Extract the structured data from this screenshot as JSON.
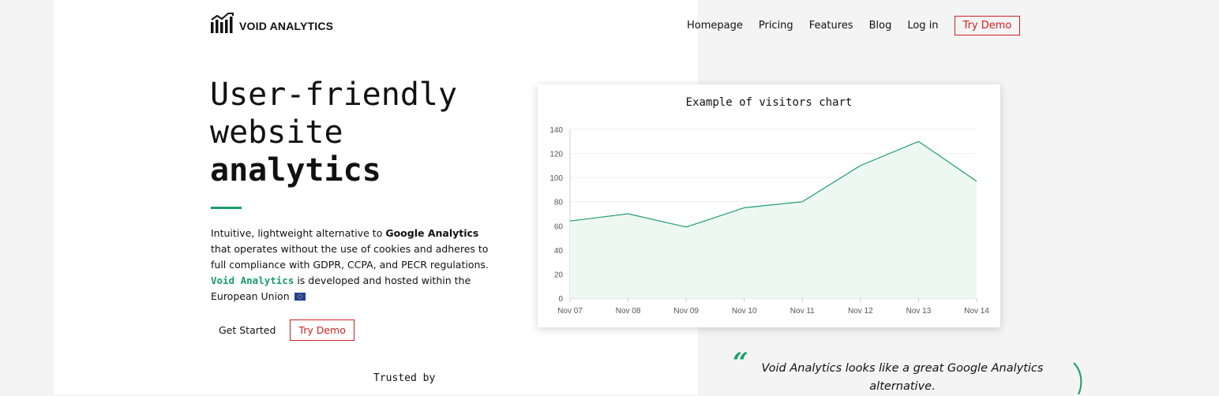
{
  "brand": {
    "name": "VOID ANALYTICS"
  },
  "nav": {
    "links": [
      "Homepage",
      "Pricing",
      "Features",
      "Blog",
      "Log in"
    ],
    "try_demo": "Try Demo"
  },
  "hero": {
    "line1": "User-friendly",
    "line2": "website",
    "line3": "analytics",
    "intro_part1": "Intuitive, lightweight alternative to ",
    "intro_bold": "Google Analytics",
    "intro_part2": " that operates without the use of cookies and adheres to full compliance with GDPR, CCPA, and PECR regulations.",
    "intro_brand": "Void Analytics",
    "intro_part3": " is developed and hosted within the European Union",
    "get_started": "Get Started",
    "try_demo": "Try Demo",
    "trusted_by": "Trusted by"
  },
  "chart_data": {
    "type": "area",
    "title": "Example of visitors chart",
    "categories": [
      "Nov 07",
      "Nov 08",
      "Nov 09",
      "Nov 10",
      "Nov 11",
      "Nov 12",
      "Nov 13",
      "Nov 14"
    ],
    "series": [
      {
        "values": [
          64,
          70,
          59,
          75,
          80,
          110,
          130,
          97
        ]
      }
    ],
    "ylim": [
      0,
      140
    ],
    "yticks": [
      0,
      20,
      40,
      60,
      80,
      100,
      120,
      140
    ],
    "grid": true,
    "line_color": "#1a9d6b",
    "fill_color": "#eef8f3"
  },
  "testimonial": {
    "quote": "Void Analytics looks like a great Google Analytics alternative."
  },
  "colors": {
    "accent_green": "#1a9d6b",
    "accent_red": "#d11f1f"
  }
}
